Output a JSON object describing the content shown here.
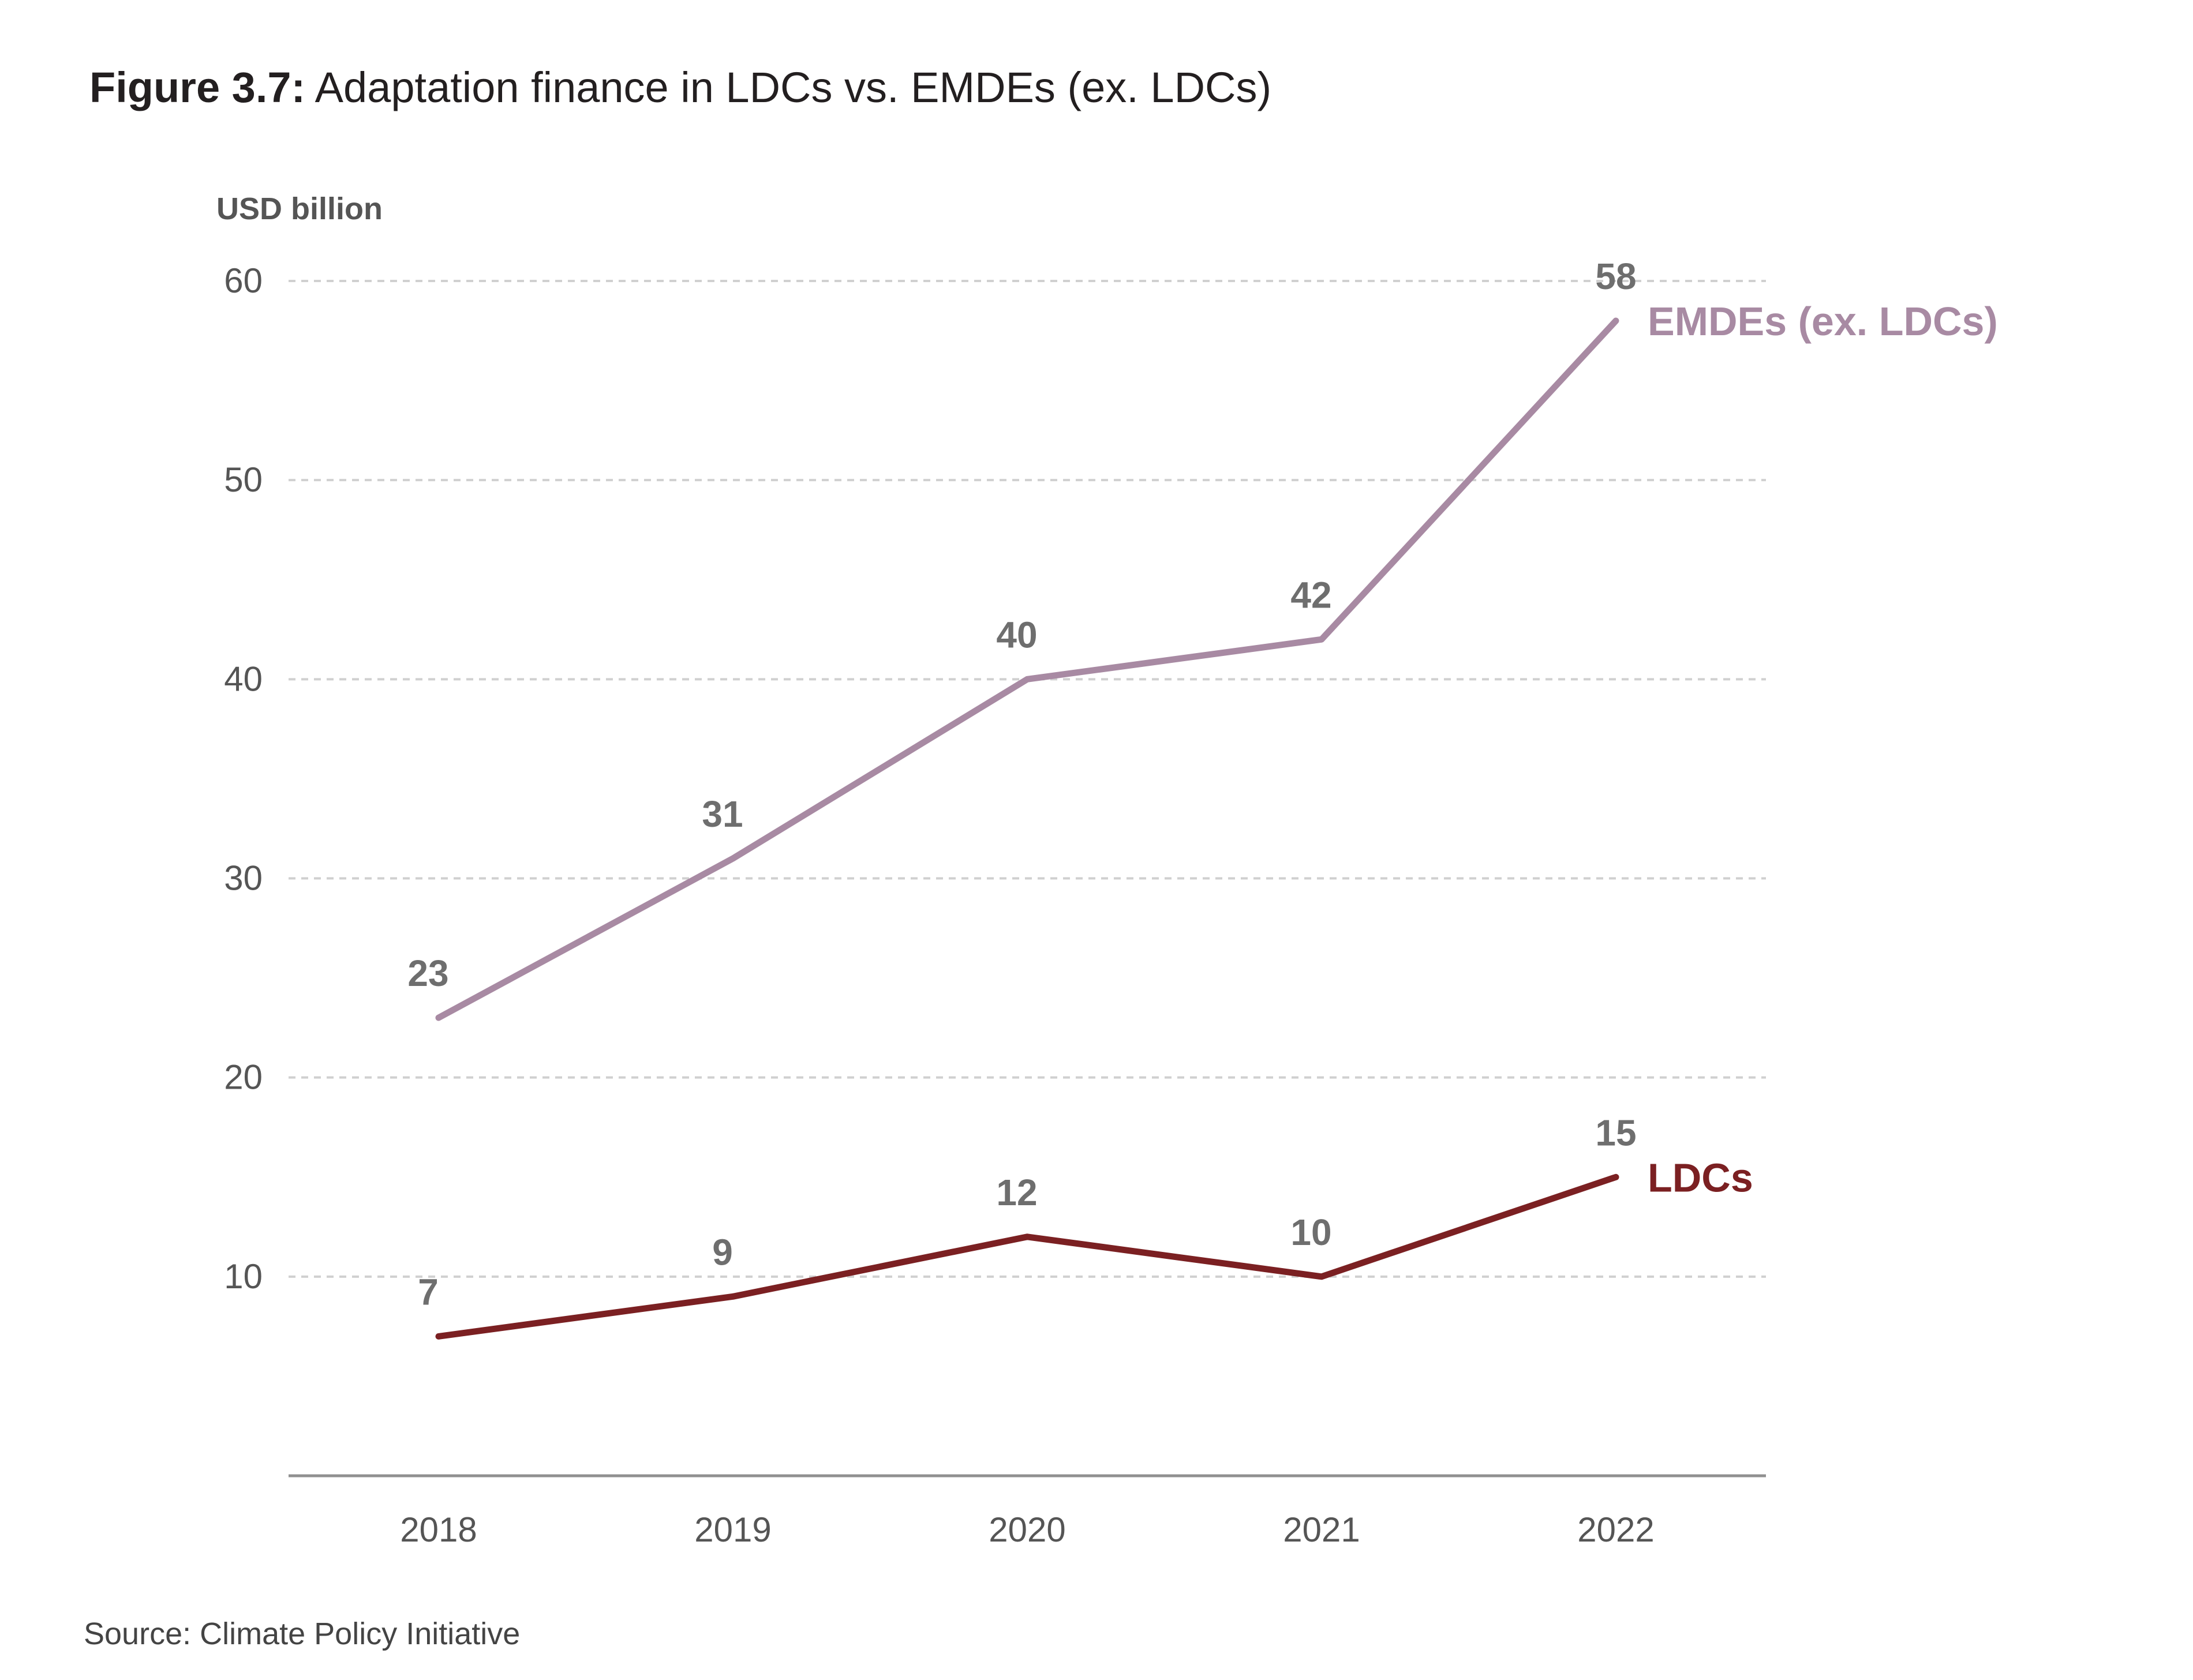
{
  "figure": {
    "label": "Figure 3.7:",
    "title": " Adaptation finance in LDCs vs. EMDEs (ex. LDCs)"
  },
  "source": "Source: Climate Policy Initiative",
  "colors": {
    "emdes": "#a88aa3",
    "ldcs": "#7b2022",
    "text": "#231f20",
    "axis_text": "#555555",
    "data_label": "#6e6e6e",
    "grid": "#d0d0d0"
  },
  "chart_data": {
    "type": "line",
    "title": "Adaptation finance in LDCs vs. EMDEs (ex. LDCs)",
    "xlabel": "",
    "ylabel": "USD billion",
    "x": [
      "2018",
      "2019",
      "2020",
      "2021",
      "2022"
    ],
    "ylim": [
      0,
      60
    ],
    "yticks": [
      10,
      20,
      30,
      40,
      50,
      60
    ],
    "grid": true,
    "grid_style": "dashed horizontal",
    "legend": "inline labels at line ends",
    "series": [
      {
        "name": "EMDEs (ex. LDCs)",
        "values": [
          23,
          31,
          40,
          42,
          58
        ],
        "labels": [
          "23",
          "31",
          "40",
          "42",
          "58"
        ],
        "color": "#a88aa3"
      },
      {
        "name": "LDCs",
        "values": [
          7,
          9,
          12,
          10,
          15
        ],
        "labels": [
          "7",
          "9",
          "12",
          "10",
          "15"
        ],
        "color": "#7b2022"
      }
    ]
  }
}
